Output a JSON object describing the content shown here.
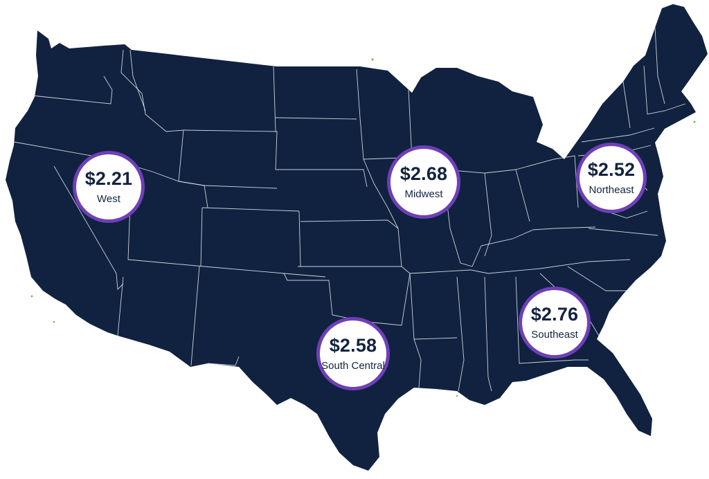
{
  "map": {
    "land_color": "#10223f",
    "border_color": "#e2e6ee",
    "badge_border_color": "#6f3fb8",
    "badge_text_color": "#13233f"
  },
  "regions": {
    "west": {
      "price": "$2.21",
      "label": "West"
    },
    "midwest": {
      "price": "$2.68",
      "label": "Midwest"
    },
    "northeast": {
      "price": "$2.52",
      "label": "Northeast"
    },
    "southeast": {
      "price": "$2.76",
      "label": "Southeast"
    },
    "south_central": {
      "price": "$2.58",
      "label": "South Central"
    }
  }
}
